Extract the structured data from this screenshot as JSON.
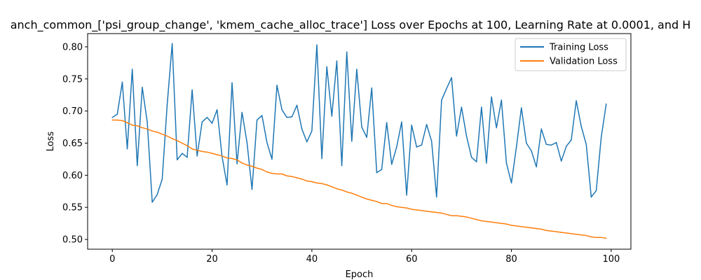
{
  "chart_data": {
    "type": "line",
    "title": "anch_common_['psi_group_change', 'kmem_cache_alloc_trace'] Loss over Epochs at 100, Learning Rate at 0.0001, and H",
    "xlabel": "Epoch",
    "ylabel": "Loss",
    "xlim": [
      -4.95,
      103.95
    ],
    "ylim": [
      0.4848,
      0.8206
    ],
    "x_ticks": [
      0,
      20,
      40,
      60,
      80,
      100
    ],
    "y_ticks": [
      0.5,
      0.55,
      0.6,
      0.65,
      0.7,
      0.75,
      0.8
    ],
    "x_tick_labels": [
      "0",
      "20",
      "40",
      "60",
      "80",
      "100"
    ],
    "y_tick_labels": [
      "0.50",
      "0.55",
      "0.60",
      "0.65",
      "0.70",
      "0.75",
      "0.80"
    ],
    "grid": false,
    "legend_position": "top-right",
    "series": [
      {
        "name": "Training Loss",
        "color": "#1f77b4",
        "values": [
          0.69,
          0.695,
          0.745,
          0.641,
          0.765,
          0.615,
          0.737,
          0.683,
          0.558,
          0.57,
          0.594,
          0.71,
          0.805,
          0.624,
          0.634,
          0.628,
          0.733,
          0.63,
          0.683,
          0.69,
          0.681,
          0.702,
          0.629,
          0.585,
          0.744,
          0.618,
          0.698,
          0.651,
          0.578,
          0.686,
          0.693,
          0.651,
          0.625,
          0.74,
          0.702,
          0.69,
          0.691,
          0.709,
          0.672,
          0.652,
          0.669,
          0.803,
          0.626,
          0.769,
          0.692,
          0.778,
          0.615,
          0.792,
          0.653,
          0.765,
          0.675,
          0.659,
          0.736,
          0.604,
          0.609,
          0.682,
          0.617,
          0.644,
          0.683,
          0.569,
          0.678,
          0.644,
          0.647,
          0.679,
          0.653,
          0.566,
          0.717,
          0.735,
          0.752,
          0.661,
          0.706,
          0.661,
          0.628,
          0.621,
          0.706,
          0.619,
          0.722,
          0.674,
          0.717,
          0.619,
          0.588,
          0.644,
          0.705,
          0.65,
          0.638,
          0.613,
          0.672,
          0.648,
          0.647,
          0.651,
          0.622,
          0.645,
          0.655,
          0.716,
          0.676,
          0.648,
          0.566,
          0.576,
          0.659,
          0.711
        ]
      },
      {
        "name": "Validation Loss",
        "color": "#ff7f0e",
        "values": [
          0.686,
          0.686,
          0.685,
          0.682,
          0.678,
          0.677,
          0.674,
          0.672,
          0.669,
          0.667,
          0.664,
          0.661,
          0.657,
          0.654,
          0.65,
          0.646,
          0.641,
          0.639,
          0.637,
          0.636,
          0.634,
          0.632,
          0.63,
          0.627,
          0.626,
          0.624,
          0.619,
          0.616,
          0.614,
          0.611,
          0.609,
          0.605,
          0.603,
          0.602,
          0.602,
          0.599,
          0.598,
          0.596,
          0.594,
          0.591,
          0.59,
          0.588,
          0.587,
          0.585,
          0.582,
          0.579,
          0.577,
          0.574,
          0.572,
          0.569,
          0.566,
          0.563,
          0.561,
          0.559,
          0.556,
          0.556,
          0.553,
          0.551,
          0.55,
          0.549,
          0.547,
          0.546,
          0.545,
          0.544,
          0.543,
          0.542,
          0.541,
          0.539,
          0.537,
          0.537,
          0.536,
          0.535,
          0.533,
          0.531,
          0.529,
          0.528,
          0.527,
          0.526,
          0.525,
          0.524,
          0.522,
          0.521,
          0.52,
          0.519,
          0.518,
          0.517,
          0.516,
          0.514,
          0.513,
          0.512,
          0.511,
          0.51,
          0.509,
          0.508,
          0.507,
          0.506,
          0.504,
          0.503,
          0.503,
          0.502
        ]
      }
    ]
  }
}
